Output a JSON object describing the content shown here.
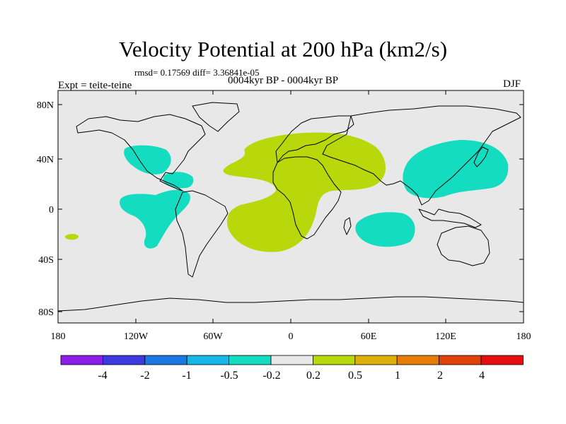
{
  "title": "Velocity Potential at 200 hPa (km2/s)",
  "stats": "rmsd= 0.17569 diff= 3.36841e-05",
  "period": "0004kyr BP - 0004kyr BP",
  "experiment": "Expt = teite-teine",
  "season": "DJF",
  "lat_labels": [
    "80N",
    "40N",
    "0",
    "40S",
    "80S"
  ],
  "lon_labels": [
    "180",
    "120W",
    "60W",
    "0",
    "60E",
    "120E",
    "180"
  ],
  "colorbar": {
    "labels": [
      "-4",
      "-2",
      "-1",
      "-0.5",
      "-0.2",
      "0.2",
      "0.5",
      "1",
      "2",
      "4"
    ],
    "colors": [
      "#8a1ee8",
      "#3a3adf",
      "#1a78e2",
      "#16b8ea",
      "#14dcc0",
      "#e8e8e8",
      "#b8d80c",
      "#dcb008",
      "#e67c08",
      "#e0420a",
      "#e41010"
    ]
  },
  "field_colors": {
    "background": "#e8e8e8",
    "positive": "#b8d80c",
    "negative": "#14dcc0"
  }
}
